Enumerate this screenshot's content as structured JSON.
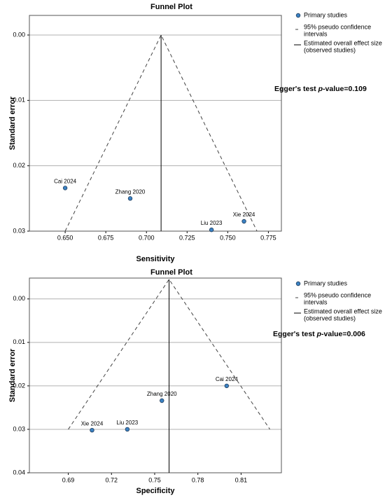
{
  "chart_data": [
    {
      "type": "funnel",
      "title": "Funnel Plot",
      "x_label": "Sensitivity",
      "y_label": "Standard error",
      "annotation": {
        "text": "Egger's test ",
        "italic": "p",
        "suffix": "-value=0.109"
      },
      "points": {
        "name": [
          "Primary studies"
        ],
        "color": "#3b82c4",
        "labels": [
          "Cai 2024",
          "Zhang 2020",
          "Liu 2023",
          "Xie 2024"
        ],
        "x": [
          0.65,
          0.69,
          0.74,
          0.76
        ],
        "y": [
          0.0234,
          0.025,
          0.0298,
          0.0285
        ]
      },
      "ci": {
        "name": [
          "95% pseudo confidence",
          "intervals"
        ],
        "color": "#444444",
        "x": [
          0.65,
          0.709,
          0.768
        ],
        "y": [
          0.03,
          0,
          0.03
        ]
      },
      "effect": {
        "name": [
          "Estimated overall effect size",
          "(observed studies)"
        ],
        "color": "#000000",
        "x": 0.709
      },
      "xlim": [
        0.628,
        0.783
      ],
      "ylim": [
        -0.003,
        0.03
      ],
      "xticks": [
        {
          "value": 0.65,
          "label": "0.650"
        },
        0.675,
        {
          "value": 0.7,
          "label": "0.700"
        },
        0.725,
        {
          "value": 0.75,
          "label": "0.750"
        },
        0.775
      ],
      "yticks": [
        {
          "value": 0,
          "label": "0.00"
        },
        0.01,
        0.02,
        0.03
      ],
      "grid": true
    },
    {
      "type": "funnel",
      "title": "Funnel Plot",
      "x_label": "Specificity",
      "y_label": "Standard error",
      "annotation": {
        "text": "Egger's test ",
        "italic": "p",
        "suffix": "-value=0.006"
      },
      "points": {
        "name": [
          "Primary studies"
        ],
        "color": "#3b82c4",
        "labels": [
          "Cai 2024",
          "Zhang 2020",
          "Liu 2023",
          "Xie 2024"
        ],
        "x": [
          0.8,
          0.755,
          0.731,
          0.7065
        ],
        "y": [
          0.02,
          0.0234,
          0.03,
          0.0302
        ]
      },
      "ci": {
        "name": [
          "95% pseudo confidence",
          "intervals"
        ],
        "color": "#444444",
        "x": [
          0.69,
          0.76,
          0.83
        ],
        "y": [
          0.03,
          -0.0045,
          0.03
        ]
      },
      "effect": {
        "name": [
          "Estimated overall effect size",
          "(observed studies)"
        ],
        "color": "#000000",
        "x": 0.76
      },
      "xlim": [
        0.663,
        0.838
      ],
      "ylim": [
        -0.0048,
        0.04
      ],
      "xticks": [
        0.69,
        0.72,
        0.75,
        0.78,
        0.81
      ],
      "yticks": [
        {
          "value": 0,
          "label": "0.00"
        },
        0.01,
        0.02,
        {
          "value": 0.03,
          "label": "0.03"
        },
        {
          "value": 0.04,
          "label": "0.04"
        }
      ],
      "grid": true
    }
  ]
}
